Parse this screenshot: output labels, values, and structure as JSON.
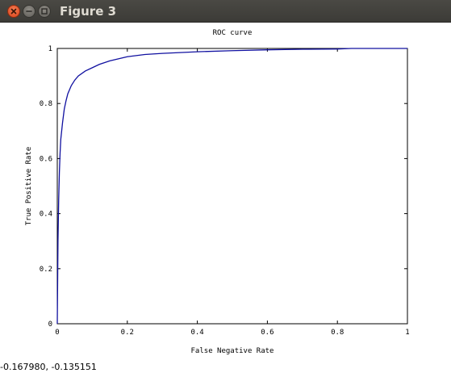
{
  "window": {
    "title": "Figure 3",
    "controls": {
      "close": "close-icon",
      "minimize": "minimize-icon",
      "maximize": "maximize-icon"
    }
  },
  "chart_data": {
    "type": "line",
    "title": "ROC curve",
    "xlabel": "False Negative Rate",
    "ylabel": "True Positive Rate",
    "xlim": [
      0,
      1
    ],
    "ylim": [
      0,
      1
    ],
    "xticks": [
      "0",
      "0.2",
      "0.4",
      "0.6",
      "0.8",
      "1"
    ],
    "yticks": [
      "0",
      "0.2",
      "0.4",
      "0.6",
      "0.8",
      "1"
    ],
    "grid": false,
    "series": [
      {
        "color": "#1010a0",
        "x": [
          0,
          0.002,
          0.004,
          0.006,
          0.008,
          0.01,
          0.015,
          0.02,
          0.025,
          0.03,
          0.04,
          0.05,
          0.06,
          0.08,
          0.1,
          0.12,
          0.15,
          0.2,
          0.25,
          0.3,
          0.4,
          0.5,
          0.6,
          0.7,
          0.8,
          0.84,
          1
        ],
        "y": [
          0,
          0.3,
          0.45,
          0.55,
          0.62,
          0.67,
          0.73,
          0.78,
          0.81,
          0.835,
          0.865,
          0.885,
          0.9,
          0.918,
          0.93,
          0.942,
          0.955,
          0.97,
          0.978,
          0.982,
          0.988,
          0.992,
          0.995,
          0.997,
          0.998,
          1,
          1
        ]
      }
    ]
  },
  "status": {
    "coords": "-0.167980, -0.135151"
  }
}
